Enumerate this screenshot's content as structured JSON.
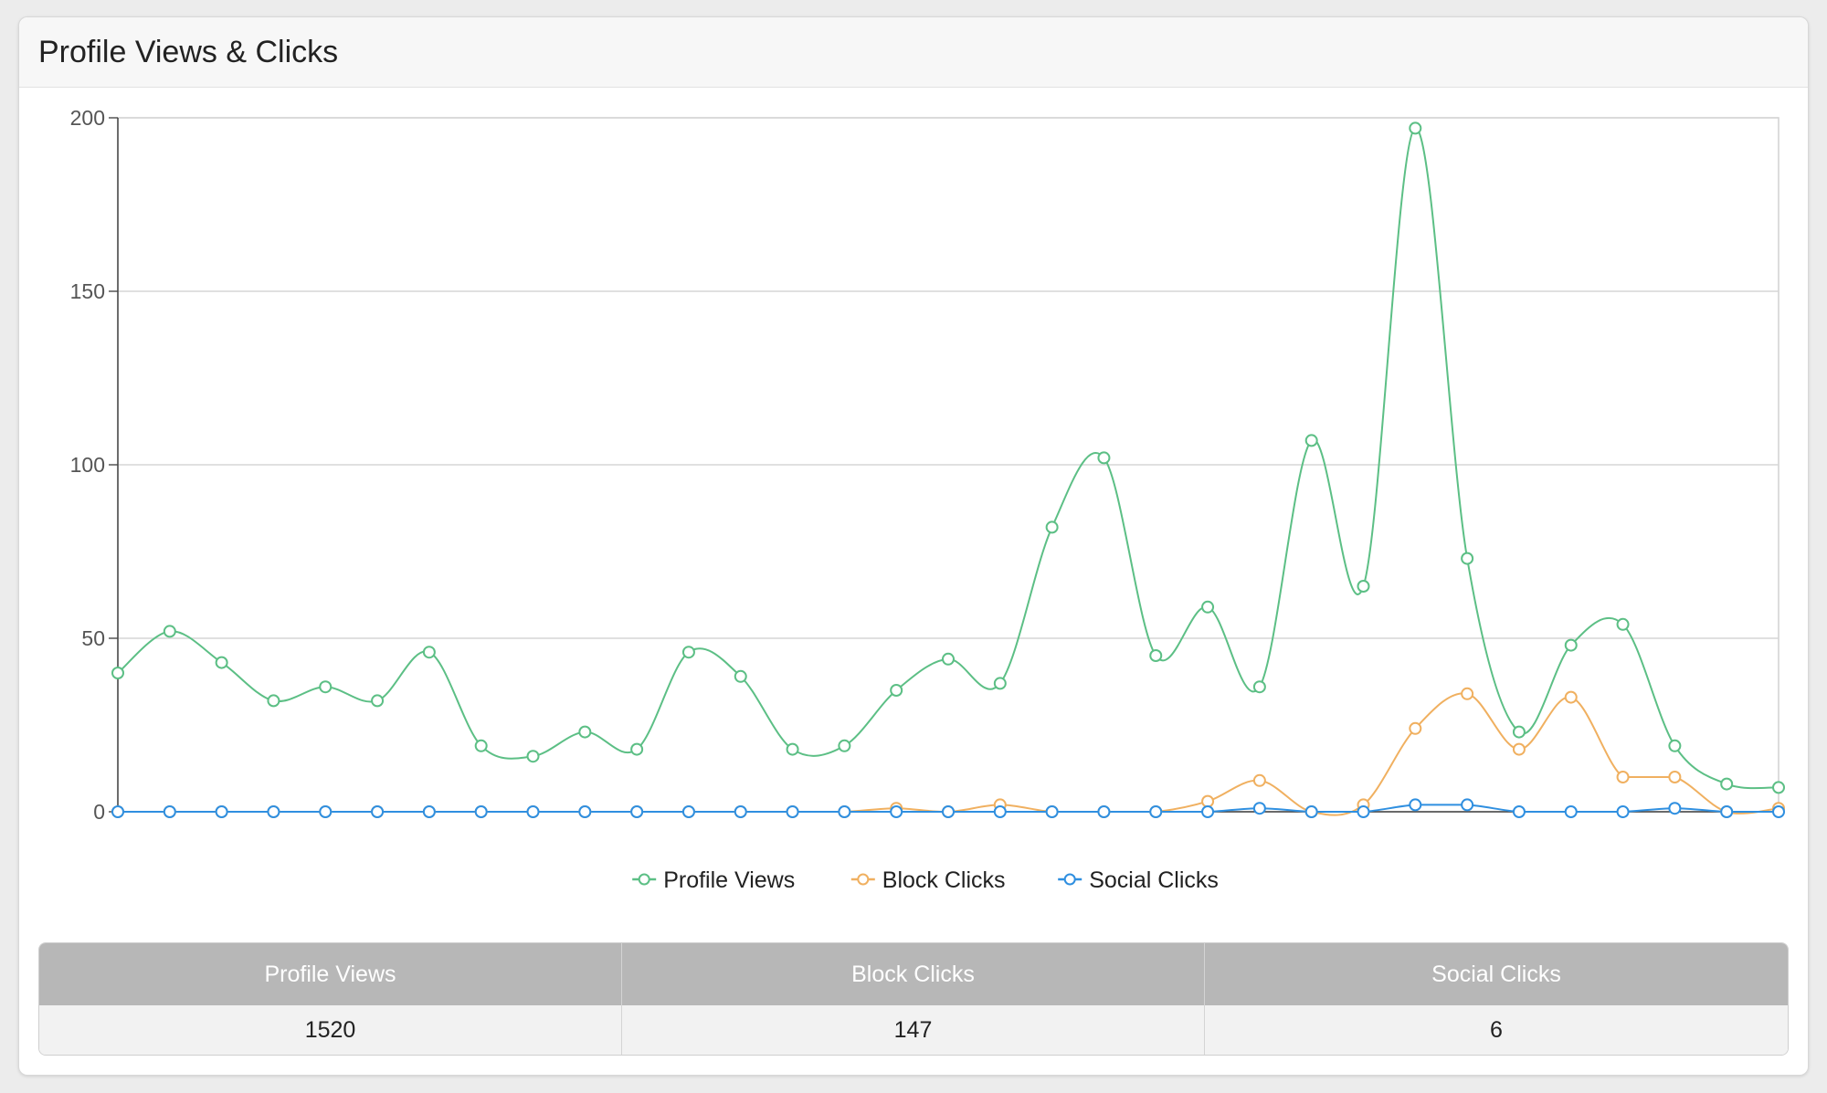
{
  "panel": {
    "title": "Profile Views & Clicks"
  },
  "chart_data": {
    "type": "line",
    "title": "",
    "xlabel": "",
    "ylabel": "",
    "ylim": [
      0,
      200
    ],
    "yticks": [
      "0",
      "50",
      "100",
      "150",
      "200"
    ],
    "x": [
      0,
      1,
      2,
      3,
      4,
      5,
      6,
      7,
      8,
      9,
      10,
      11,
      12,
      13,
      14,
      15,
      16,
      17,
      18,
      19,
      20,
      21,
      22,
      23,
      24,
      25,
      26,
      27,
      28,
      29,
      30,
      31,
      32
    ],
    "grid": true,
    "legend_position": "bottom",
    "series": [
      {
        "name": "Profile Views",
        "color": "#5cbf85",
        "values": [
          40,
          52,
          43,
          32,
          36,
          32,
          46,
          19,
          16,
          23,
          18,
          46,
          39,
          18,
          19,
          35,
          44,
          37,
          82,
          102,
          45,
          59,
          36,
          107,
          65,
          197,
          73,
          23,
          48,
          54,
          19,
          8,
          7
        ]
      },
      {
        "name": "Block Clicks",
        "color": "#f0b060",
        "values": [
          0,
          0,
          0,
          0,
          0,
          0,
          0,
          0,
          0,
          0,
          0,
          0,
          0,
          0,
          0,
          1,
          0,
          2,
          0,
          0,
          0,
          3,
          9,
          0,
          2,
          24,
          34,
          18,
          33,
          10,
          10,
          0,
          1
        ]
      },
      {
        "name": "Social Clicks",
        "color": "#2f8fe0",
        "values": [
          0,
          0,
          0,
          0,
          0,
          0,
          0,
          0,
          0,
          0,
          0,
          0,
          0,
          0,
          0,
          0,
          0,
          0,
          0,
          0,
          0,
          0,
          1,
          0,
          0,
          2,
          2,
          0,
          0,
          0,
          1,
          0,
          0
        ]
      }
    ]
  },
  "stats": {
    "headers": [
      "Profile Views",
      "Block Clicks",
      "Social Clicks"
    ],
    "values": [
      "1520",
      "147",
      "6"
    ]
  }
}
